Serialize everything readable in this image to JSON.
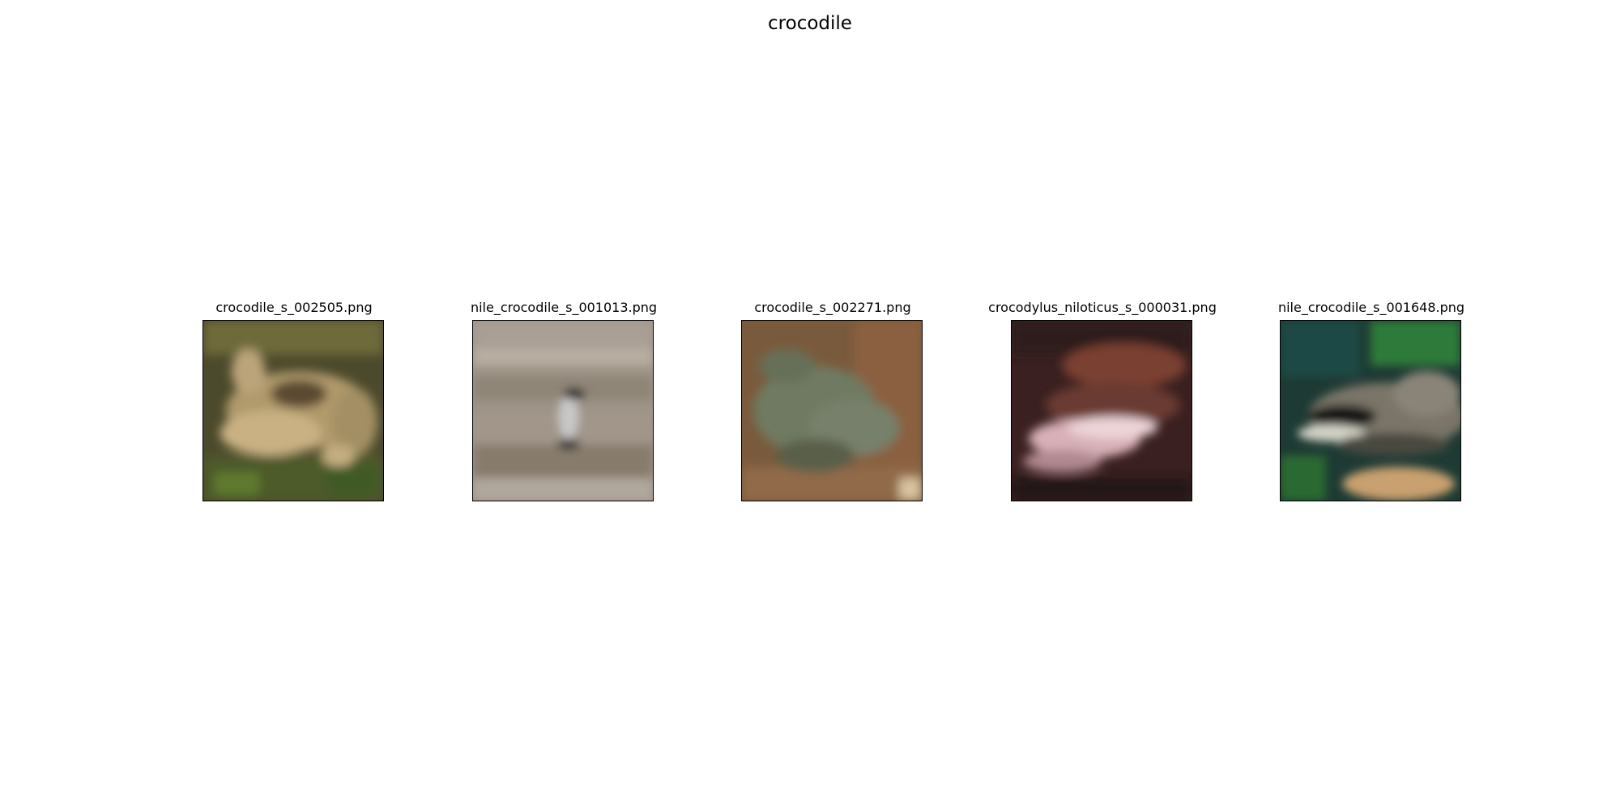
{
  "figure": {
    "title": "crocodile"
  },
  "panels": [
    {
      "caption": "crocodile_s_002505.png"
    },
    {
      "caption": "nile_crocodile_s_001013.png"
    },
    {
      "caption": "crocodile_s_002271.png"
    },
    {
      "caption": "crocodylus_niloticus_s_000031.png"
    },
    {
      "caption": "nile_crocodile_s_001648.png"
    }
  ]
}
